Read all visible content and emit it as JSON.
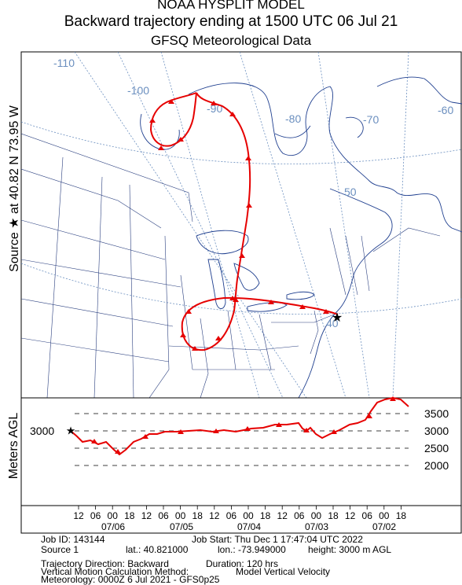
{
  "header": {
    "line1": "NOAA HYSPLIT MODEL",
    "line2": "Backward trajectory ending at 1500 UTC 06 Jul 21",
    "line3": "GFSQ Meteorological Data"
  },
  "side_label": {
    "text": "Source ★ at   40.82 N   73.95 W"
  },
  "height_axis_label": "Meters AGL",
  "map": {
    "lon_labels": [
      "-110",
      "-100",
      "-90",
      "-80",
      "-70",
      "-60"
    ],
    "lat_labels": [
      "50",
      "40"
    ],
    "trajectory_color": "#e60000",
    "graticule_color": "#6b8fbf",
    "source_marker": "star-icon"
  },
  "height_panel": {
    "y_ticks": [
      "3500",
      "3000",
      "2500",
      "2000"
    ],
    "start_label": "3000",
    "hour_labels": [
      "12",
      "06",
      "00",
      "18",
      "12",
      "06",
      "00",
      "18",
      "12",
      "06",
      "00",
      "18",
      "12",
      "06",
      "00",
      "18",
      "12",
      "06",
      "00",
      "18"
    ],
    "date_labels": [
      "07/06",
      "07/05",
      "07/04",
      "07/03",
      "07/02"
    ]
  },
  "footer": {
    "job_id": "Job ID: 143144",
    "job_start": "Job Start: Thu Dec  1 17:47:04 UTC 2022",
    "source": "Source 1",
    "lat": "lat.: 40.821000",
    "lon": "lon.: -73.949000",
    "height": "height: 3000 m AGL",
    "direction": "Trajectory Direction: Backward",
    "duration": "Duration: 120 hrs",
    "vertical_method": "Vertical Motion Calculation Method:",
    "vertical_value": "Model Vertical Velocity",
    "meteorology": "Meteorology: 0000Z  6 Jul 2021 - GFS0p25"
  }
}
